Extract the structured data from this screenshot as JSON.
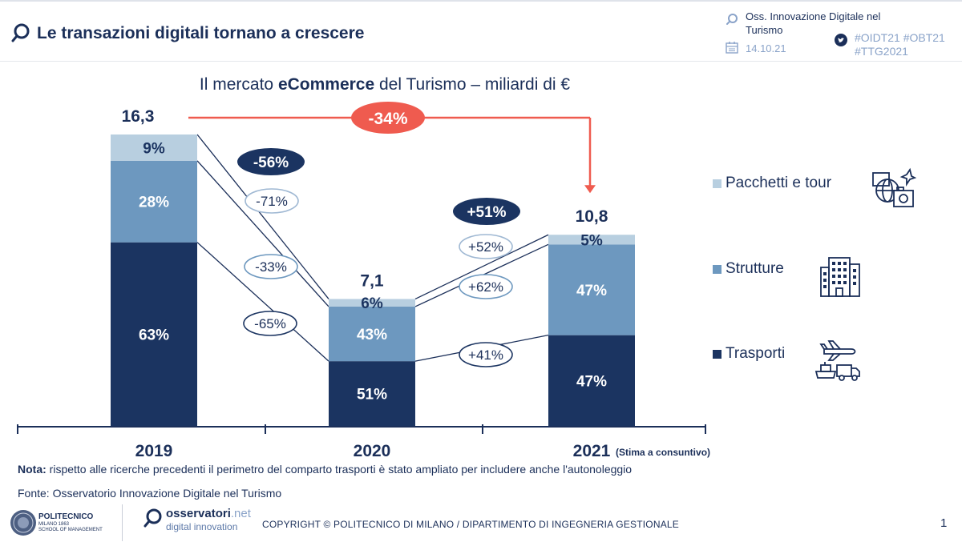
{
  "header": {
    "title": "Le transazioni digitali tornano a crescere",
    "event_line1": "Oss. Innovazione Digitale nel",
    "event_line2": "Turismo",
    "date": "14.10.21",
    "hashtags_line1": "#OIDT21 #OBT21",
    "hashtags_line2": "#TTG2021"
  },
  "chart_data": {
    "type": "bar",
    "stacked": true,
    "title_prefix": "Il mercato ",
    "title_bold": "eCommerce",
    "title_suffix": " del Turismo – miliardi di €",
    "categories": [
      "2019",
      "2020",
      "2021"
    ],
    "category_notes": [
      "",
      "",
      "(Stima a consuntivo)"
    ],
    "totals": [
      16.3,
      7.1,
      10.8
    ],
    "total_labels": [
      "16,3",
      "7,1",
      "10,8"
    ],
    "series": [
      {
        "name": "Trasporti",
        "color": "#1b3461",
        "text_color": "#ffffff",
        "shares": [
          63,
          51,
          47
        ],
        "labels": [
          "63%",
          "51%",
          "47%"
        ]
      },
      {
        "name": "Strutture",
        "color": "#6d98bf",
        "text_color": "#ffffff",
        "shares": [
          28,
          43,
          47
        ],
        "labels": [
          "28%",
          "43%",
          "47%"
        ]
      },
      {
        "name": "Pacchetti e tour",
        "color": "#b8cfe0",
        "text_color": "#1b3461",
        "shares": [
          9,
          6,
          5
        ],
        "labels": [
          "9%",
          "6%",
          "5%"
        ]
      }
    ],
    "changes": {
      "total_2019_2020": "-56%",
      "total_2020_2021": "+51%",
      "total_2019_2021": "-34%",
      "pacchetti_2019_2020": "-71%",
      "strutture_2019_2020": "-33%",
      "trasporti_2019_2020": "-65%",
      "pacchetti_2020_2021": "+52%",
      "strutture_2020_2021": "+62%",
      "trasporti_2020_2021": "+41%"
    }
  },
  "legend": [
    {
      "label": "Pacchetti e tour",
      "icon": "travel-package-icon",
      "color": "#b8cfe0"
    },
    {
      "label": "Strutture",
      "icon": "hotel-building-icon",
      "color": "#6d98bf"
    },
    {
      "label": "Trasporti",
      "icon": "transport-icon",
      "color": "#1b3461"
    }
  ],
  "note": {
    "label": "Nota:",
    "text": " rispetto alle ricerche precedenti il perimetro del comparto trasporti è stato ampliato per includere anche l'autonoleggio"
  },
  "source": "Fonte: Osservatorio Innovazione Digitale nel Turismo",
  "footer": {
    "polimi_name": "POLITECNICO",
    "polimi_city": "MILANO 1863",
    "polimi_school": "SCHOOL OF MANAGEMENT",
    "oss_name": "osservatori",
    "oss_net": ".net",
    "oss_sub": "digital innovation",
    "copyright": "COPYRIGHT © POLITECNICO DI MILANO / DIPARTIMENTO DI INGEGNERIA GESTIONALE",
    "page": "1"
  },
  "colors": {
    "navy": "#1b3461",
    "accent_red": "#ef5b4f",
    "mid_blue": "#6d98bf",
    "light_blue": "#b8cfe0"
  }
}
